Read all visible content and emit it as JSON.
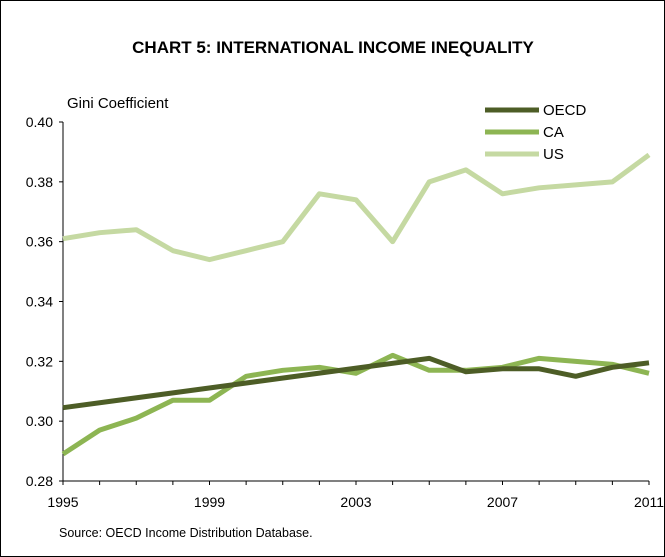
{
  "chart_data": {
    "type": "line",
    "title": "CHART 5: INTERNATIONAL INCOME INEQUALITY",
    "ylabel": "Gini Coefficient",
    "xlabel": "",
    "source": "Source: OECD Income Distribution Database.",
    "xlim": [
      1995,
      2011
    ],
    "ylim": [
      0.28,
      0.4
    ],
    "x_ticks": [
      1995,
      1999,
      2003,
      2007,
      2011
    ],
    "x_tick_labels": [
      "1995",
      "1999",
      "2003",
      "2007",
      "2011"
    ],
    "y_ticks": [
      0.28,
      0.3,
      0.32,
      0.34,
      0.36,
      0.38,
      0.4
    ],
    "y_tick_labels": [
      "0.28",
      "0.30",
      "0.32",
      "0.34",
      "0.36",
      "0.38",
      "0.40"
    ],
    "grid": false,
    "legend_position": "top-right",
    "series": [
      {
        "name": "OECD",
        "color": "#4d5d26",
        "points": [
          [
            1995,
            0.3045
          ],
          [
            2005,
            0.321
          ],
          [
            2006,
            0.3165
          ],
          [
            2007,
            0.3175
          ],
          [
            2008,
            0.3175
          ],
          [
            2009,
            0.315
          ],
          [
            2010,
            0.318
          ],
          [
            2011,
            0.3195
          ]
        ]
      },
      {
        "name": "CA",
        "color": "#8db553",
        "points": [
          [
            1995,
            0.289
          ],
          [
            1996,
            0.297
          ],
          [
            1997,
            0.301
          ],
          [
            1998,
            0.307
          ],
          [
            1999,
            0.307
          ],
          [
            2000,
            0.315
          ],
          [
            2001,
            0.317
          ],
          [
            2002,
            0.318
          ],
          [
            2003,
            0.316
          ],
          [
            2004,
            0.322
          ],
          [
            2005,
            0.317
          ],
          [
            2006,
            0.317
          ],
          [
            2007,
            0.318
          ],
          [
            2008,
            0.321
          ],
          [
            2009,
            0.32
          ],
          [
            2010,
            0.319
          ],
          [
            2011,
            0.316
          ]
        ]
      },
      {
        "name": "US",
        "color": "#c5d9a2",
        "points": [
          [
            1995,
            0.361
          ],
          [
            1996,
            0.363
          ],
          [
            1997,
            0.364
          ],
          [
            1998,
            0.357
          ],
          [
            1999,
            0.354
          ],
          [
            2000,
            0.357
          ],
          [
            2001,
            0.36
          ],
          [
            2002,
            0.376
          ],
          [
            2003,
            0.374
          ],
          [
            2004,
            0.36
          ],
          [
            2005,
            0.38
          ],
          [
            2006,
            0.384
          ],
          [
            2007,
            0.376
          ],
          [
            2008,
            0.378
          ],
          [
            2009,
            0.379
          ],
          [
            2010,
            0.38
          ],
          [
            2011,
            0.389
          ]
        ]
      }
    ]
  }
}
